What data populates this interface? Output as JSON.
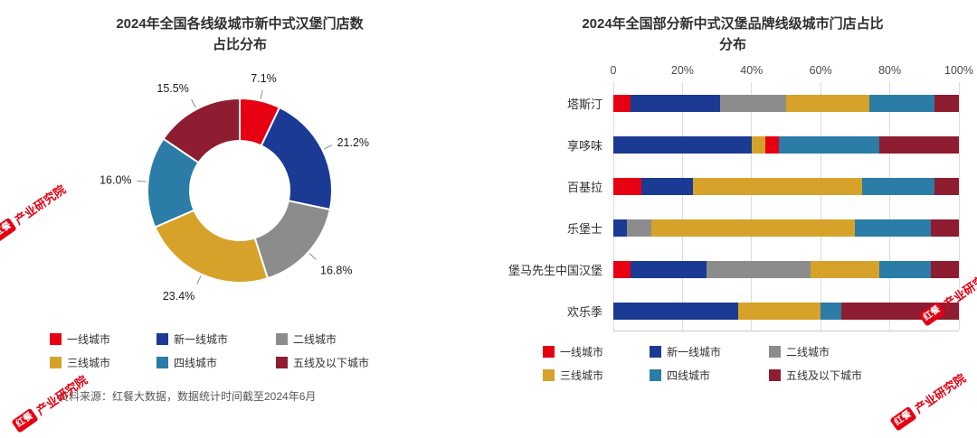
{
  "source_note": "资料来源：红餐大数据，数据统计时间截至2024年6月",
  "watermark": {
    "logo": "红餐",
    "name": "产业研究院"
  },
  "tier_colors": {
    "一线城市": "#e60012",
    "新一线城市": "#1a3a94",
    "二线城市": "#8c8c8c",
    "三线城市": "#d6a229",
    "四线城市": "#2b7ca6",
    "五线及以下城市": "#8e1d32"
  },
  "legend_items": [
    "一线城市",
    "新一线城市",
    "二线城市",
    "三线城市",
    "四线城市",
    "五线及以下城市"
  ],
  "chart_data": [
    {
      "type": "pie",
      "subtype": "donut",
      "title": "2024年全国各线级城市新中式汉堡门店数占比分布",
      "title_lines": [
        "2024年全国各线级城市新中式汉堡门店数",
        "占比分布"
      ],
      "legend_position": "bottom",
      "slices": [
        {
          "label": "一线城市",
          "value": 7.1,
          "value_label": "7.1%"
        },
        {
          "label": "新一线城市",
          "value": 21.2,
          "value_label": "21.2%"
        },
        {
          "label": "二线城市",
          "value": 16.8,
          "value_label": "16.8%"
        },
        {
          "label": "三线城市",
          "value": 23.4,
          "value_label": "23.4%"
        },
        {
          "label": "四线城市",
          "value": 16.0,
          "value_label": "16.0%"
        },
        {
          "label": "五线及以下城市",
          "value": 15.5,
          "value_label": "15.5%"
        }
      ]
    },
    {
      "type": "bar",
      "subtype": "horizontal-stacked",
      "title": "2024年全国部分新中式汉堡品牌线级城市门店占比分布",
      "title_lines": [
        "2024年全国部分新中式汉堡品牌线级城市门店占比",
        "分布"
      ],
      "x_ticks": [
        "0",
        "20%",
        "40%",
        "60%",
        "80%",
        "100%"
      ],
      "x_range": [
        0,
        100
      ],
      "grid": true,
      "legend_position": "bottom",
      "categories": [
        "塔斯汀",
        "享哆味",
        "百基拉",
        "乐堡士",
        "堡马先生中国汉堡",
        "欢乐季"
      ],
      "bars": [
        {
          "brand": "塔斯汀",
          "segments": [
            {
              "tier": "一线城市",
              "value": 5
            },
            {
              "tier": "新一线城市",
              "value": 26
            },
            {
              "tier": "二线城市",
              "value": 19
            },
            {
              "tier": "三线城市",
              "value": 24
            },
            {
              "tier": "四线城市",
              "value": 19
            },
            {
              "tier": "五线及以下城市",
              "value": 7
            }
          ]
        },
        {
          "brand": "享哆味",
          "segments": [
            {
              "tier": "新一线城市",
              "value": 40
            },
            {
              "tier": "三线城市",
              "value": 4
            },
            {
              "tier": "一线城市",
              "value": 4
            },
            {
              "tier": "四线城市",
              "value": 29
            },
            {
              "tier": "五线及以下城市",
              "value": 23
            }
          ]
        },
        {
          "brand": "百基拉",
          "segments": [
            {
              "tier": "一线城市",
              "value": 8
            },
            {
              "tier": "新一线城市",
              "value": 15
            },
            {
              "tier": "三线城市",
              "value": 49
            },
            {
              "tier": "四线城市",
              "value": 21
            },
            {
              "tier": "五线及以下城市",
              "value": 7
            }
          ]
        },
        {
          "brand": "乐堡士",
          "segments": [
            {
              "tier": "新一线城市",
              "value": 4
            },
            {
              "tier": "二线城市",
              "value": 7
            },
            {
              "tier": "三线城市",
              "value": 59
            },
            {
              "tier": "四线城市",
              "value": 22
            },
            {
              "tier": "五线及以下城市",
              "value": 8
            }
          ]
        },
        {
          "brand": "堡马先生中国汉堡",
          "segments": [
            {
              "tier": "一线城市",
              "value": 5
            },
            {
              "tier": "新一线城市",
              "value": 22
            },
            {
              "tier": "二线城市",
              "value": 30
            },
            {
              "tier": "三线城市",
              "value": 20
            },
            {
              "tier": "四线城市",
              "value": 15
            },
            {
              "tier": "五线及以下城市",
              "value": 8
            }
          ]
        },
        {
          "brand": "欢乐季",
          "segments": [
            {
              "tier": "新一线城市",
              "value": 36
            },
            {
              "tier": "三线城市",
              "value": 24
            },
            {
              "tier": "四线城市",
              "value": 6
            },
            {
              "tier": "五线及以下城市",
              "value": 34
            }
          ]
        }
      ]
    }
  ]
}
